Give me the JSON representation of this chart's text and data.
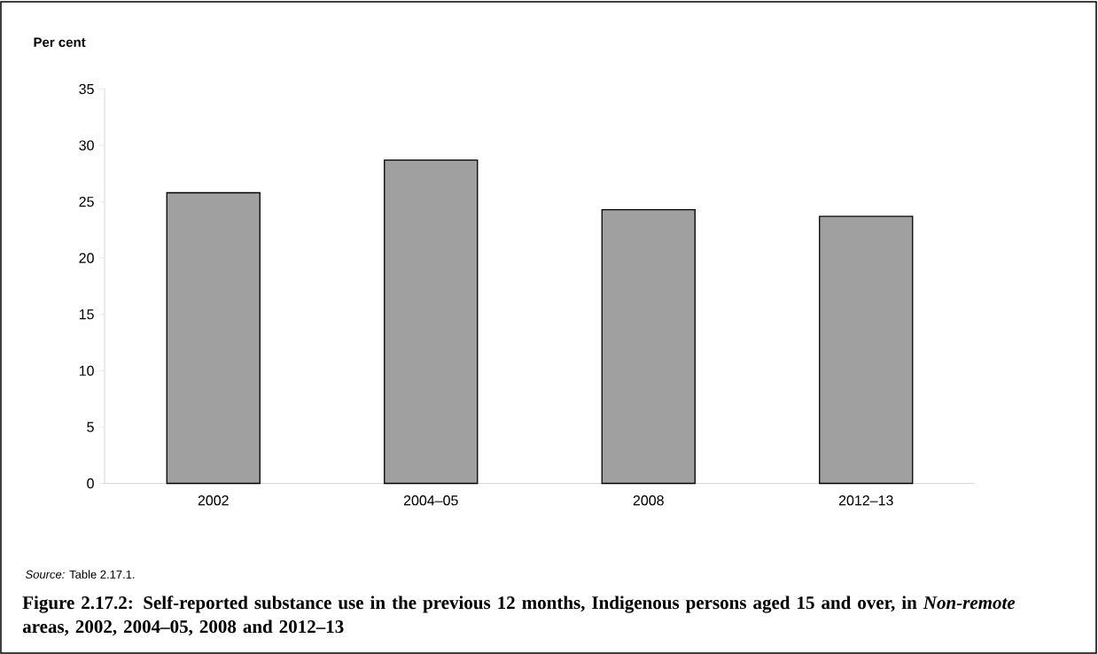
{
  "chart_data": {
    "type": "bar",
    "title": "Figure 2.17.2: Self-reported substance use in the previous 12 months, Indigenous persons aged 15 and over, in *Non-remote* areas, 2002, 2004–05, 2008 and 2012–13",
    "ylabel": "Per cent",
    "categories": [
      "2002",
      "2004–05",
      "2008",
      "2012–13"
    ],
    "values": [
      25.8,
      28.7,
      24.3,
      23.7
    ],
    "color": "#a0a0a0",
    "ylim": [
      0,
      35
    ],
    "yticks": [
      0,
      5,
      10,
      15,
      20,
      25,
      30,
      35
    ],
    "annotations": [
      "*Source:* Table 2.17.1."
    ]
  }
}
